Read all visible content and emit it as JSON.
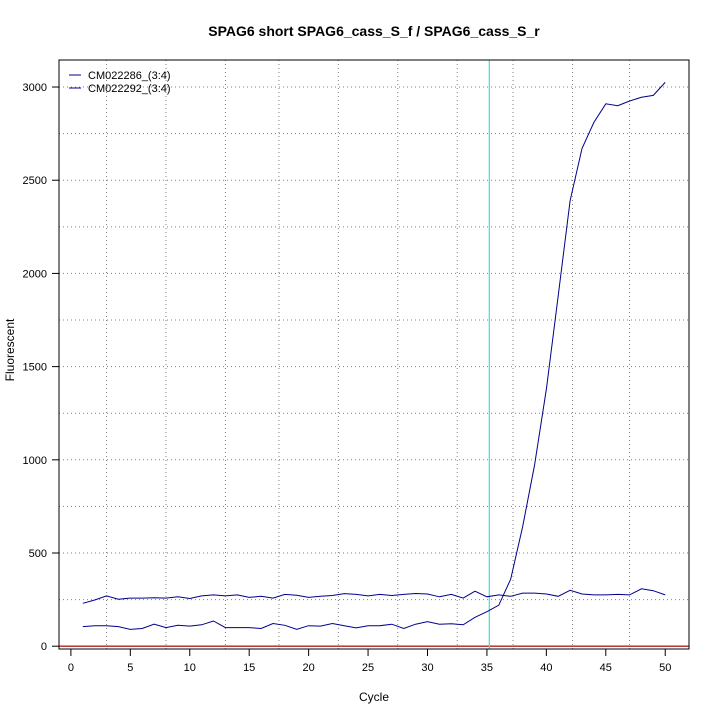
{
  "chart_data": {
    "type": "line",
    "title": "SPAG6 short SPAG6_cass_S_f / SPAG6_cass_S_r",
    "xlabel": "Cycle",
    "ylabel": "Fluorescent",
    "xlim": [
      -1,
      52
    ],
    "ylim": [
      -15,
      3145
    ],
    "x_ticks": [
      0,
      5,
      10,
      15,
      20,
      25,
      30,
      35,
      40,
      45,
      50
    ],
    "y_ticks": [
      0,
      500,
      1000,
      1500,
      2000,
      2500,
      3000
    ],
    "x_grid": [
      3,
      8,
      13,
      17.5,
      22.5,
      27.5,
      32.5,
      37.2,
      42.2,
      47
    ],
    "y_grid": [
      0,
      250,
      500,
      750,
      1000,
      1250,
      1500,
      1750,
      2000,
      2250,
      2500,
      2750,
      3000
    ],
    "threshold_cycle": 35.2,
    "baseline_level": 0,
    "grid": true,
    "legend_position": "top-left",
    "colors": {
      "series": "#00008b",
      "threshold": "#40e0d0",
      "baseline": "#b22222",
      "grid": "#808080"
    },
    "x": [
      1,
      2,
      3,
      4,
      5,
      6,
      7,
      8,
      9,
      10,
      11,
      12,
      13,
      14,
      15,
      16,
      17,
      18,
      19,
      20,
      21,
      22,
      23,
      24,
      25,
      26,
      27,
      28,
      29,
      30,
      31,
      32,
      33,
      34,
      35,
      36,
      37,
      38,
      39,
      40,
      41,
      42,
      43,
      44,
      45,
      46,
      47,
      48,
      49,
      50
    ],
    "series": [
      {
        "name": "CM022286_(3:4)",
        "values": [
          105,
          110,
          110,
          105,
          90,
          95,
          118,
          100,
          112,
          108,
          115,
          135,
          100,
          100,
          100,
          95,
          122,
          112,
          90,
          110,
          108,
          122,
          110,
          98,
          110,
          110,
          118,
          95,
          118,
          132,
          118,
          120,
          115,
          155,
          185,
          220,
          360,
          640,
          970,
          1380,
          1880,
          2390,
          2670,
          2810,
          2910,
          2900,
          2925,
          2945,
          2955,
          3025
        ]
      },
      {
        "name": "CM022292_(3:4)",
        "values": [
          230,
          248,
          270,
          252,
          258,
          258,
          260,
          258,
          265,
          256,
          270,
          275,
          270,
          275,
          262,
          268,
          258,
          278,
          273,
          262,
          268,
          272,
          282,
          278,
          270,
          278,
          272,
          278,
          283,
          280,
          265,
          278,
          258,
          295,
          265,
          275,
          268,
          285,
          285,
          280,
          268,
          300,
          280,
          275,
          275,
          278,
          275,
          308,
          298,
          275
        ]
      }
    ]
  }
}
